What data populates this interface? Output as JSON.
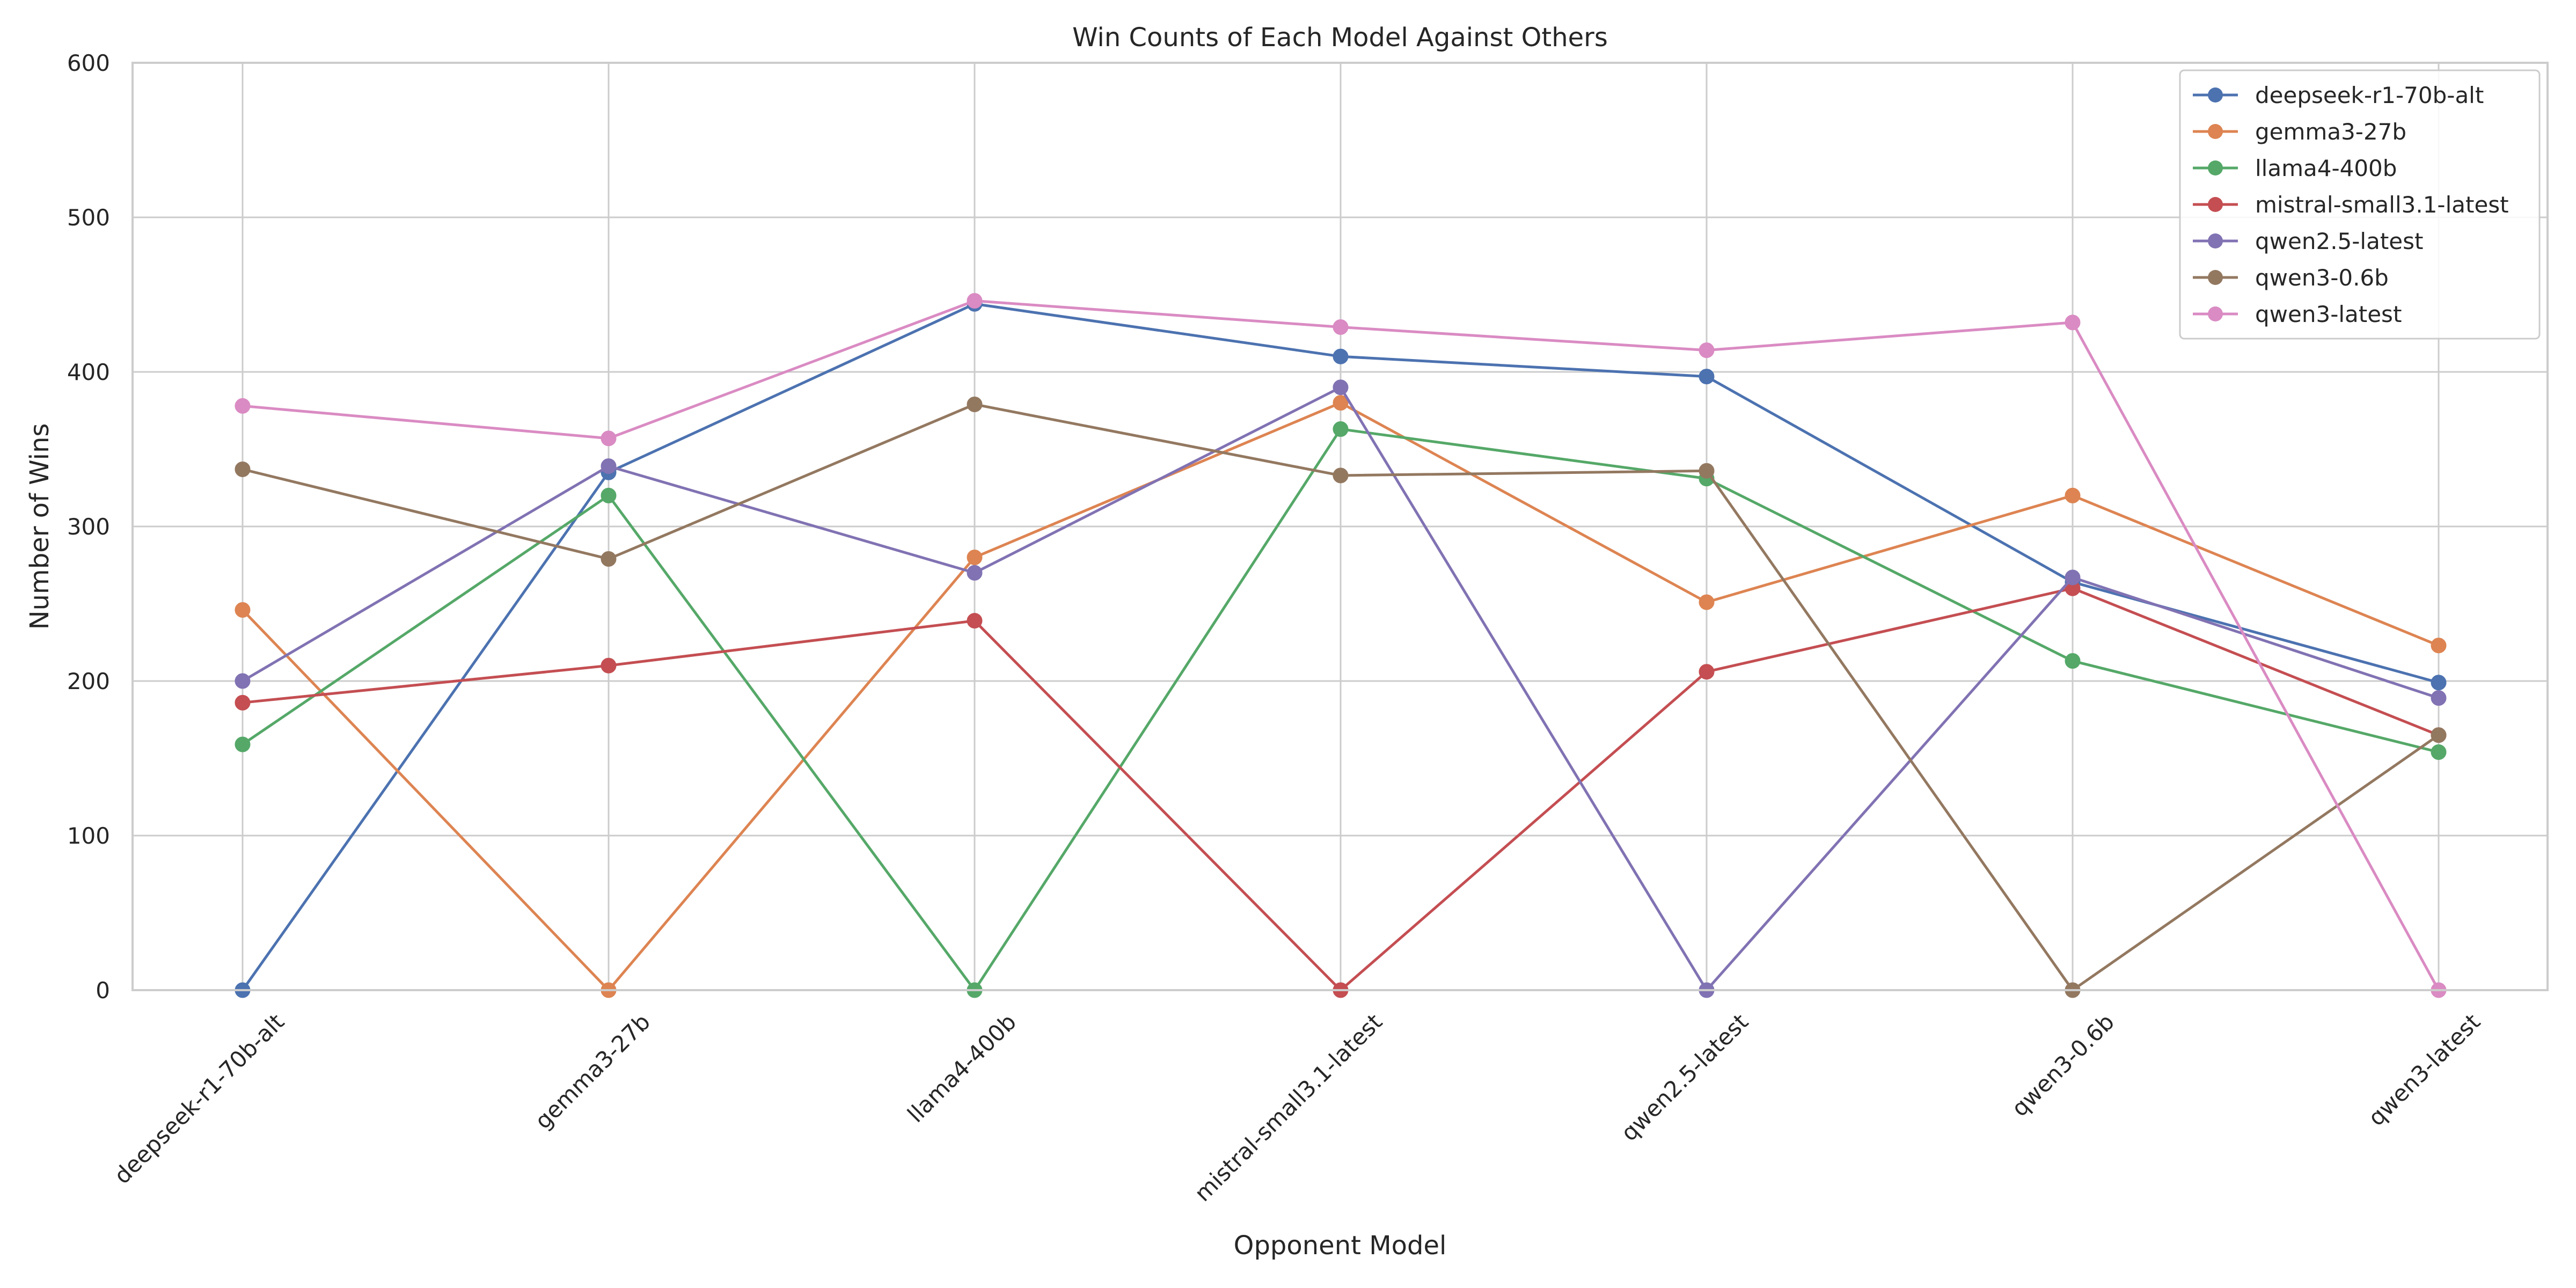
{
  "chart_data": {
    "type": "line",
    "title": "Win Counts of Each Model Against Others",
    "xlabel": "Opponent Model",
    "ylabel": "Number of Wins",
    "ylim": [
      0,
      600
    ],
    "yticks": [
      0,
      100,
      200,
      300,
      400,
      500,
      600
    ],
    "grid": true,
    "legend_position": "top-right",
    "categories": [
      "deepseek-r1-70b-alt",
      "gemma3-27b",
      "llama4-400b",
      "mistral-small3.1-latest",
      "qwen2.5-latest",
      "qwen3-0.6b",
      "qwen3-latest"
    ],
    "series": [
      {
        "name": "deepseek-r1-70b-alt",
        "color": "#4c72b0",
        "values": [
          0,
          335,
          444,
          410,
          397,
          264,
          199
        ]
      },
      {
        "name": "gemma3-27b",
        "color": "#dd8452",
        "values": [
          246,
          0,
          280,
          380,
          251,
          320,
          223
        ]
      },
      {
        "name": "llama4-400b",
        "color": "#55a868",
        "values": [
          159,
          320,
          0,
          363,
          331,
          213,
          154
        ]
      },
      {
        "name": "mistral-small3.1-latest",
        "color": "#c44e52",
        "values": [
          186,
          210,
          239,
          0,
          206,
          260,
          165
        ]
      },
      {
        "name": "qwen2.5-latest",
        "color": "#8172b3",
        "values": [
          200,
          339,
          270,
          390,
          0,
          267,
          189
        ]
      },
      {
        "name": "qwen3-0.6b",
        "color": "#937860",
        "values": [
          337,
          279,
          379,
          333,
          336,
          0,
          165
        ]
      },
      {
        "name": "qwen3-latest",
        "color": "#da8bc3",
        "values": [
          378,
          357,
          446,
          429,
          414,
          432,
          0
        ]
      }
    ]
  }
}
